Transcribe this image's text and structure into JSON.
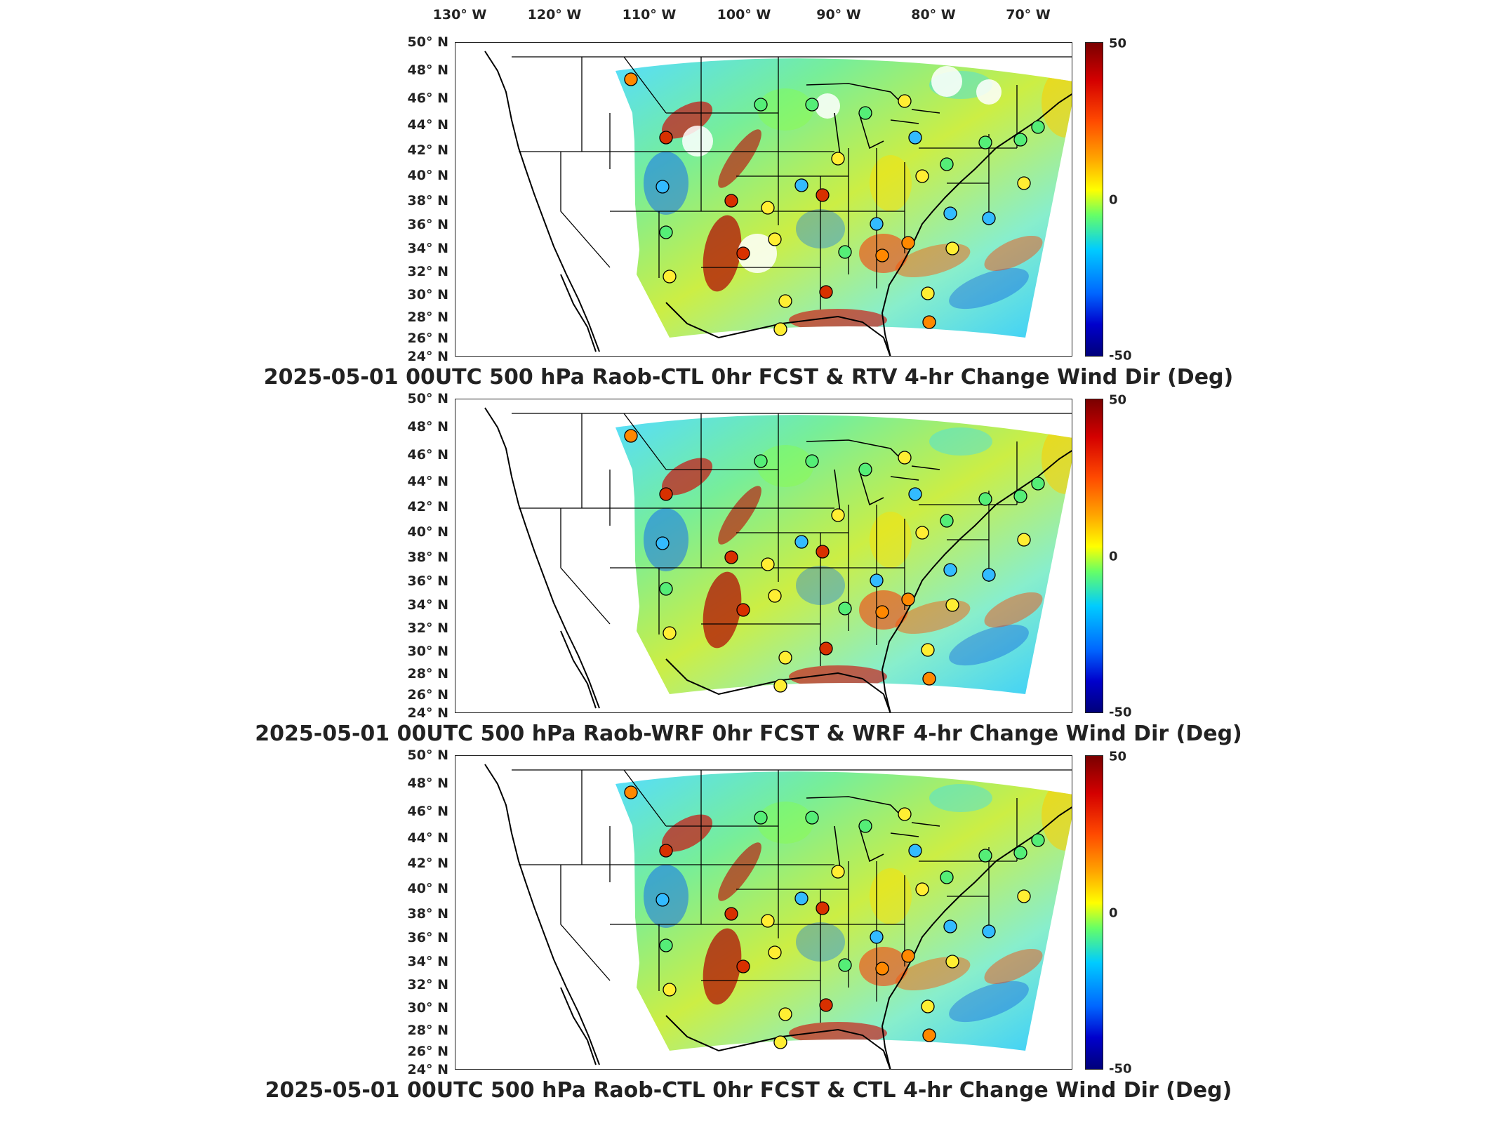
{
  "longitude_labels": [
    "130° W",
    "120° W",
    "110° W",
    "100° W",
    "90° W",
    "80° W",
    "70° W"
  ],
  "latitude_labels": [
    "50° N",
    "48° N",
    "46° N",
    "44° N",
    "42° N",
    "40° N",
    "38° N",
    "36° N",
    "34° N",
    "32° N",
    "30° N",
    "28° N",
    "26° N",
    "24° N"
  ],
  "colorbar": {
    "max_label": "50",
    "mid_label": "0",
    "min_label": "-50",
    "range": [
      -50,
      50
    ],
    "colormap": "jet"
  },
  "panels": [
    {
      "title": "2025-05-01 00UTC 500 hPa Raob-CTL 0hr FCST & RTV 4-hr Change Wind Dir (Deg)"
    },
    {
      "title": "2025-05-01 00UTC 500 hPa Raob-WRF 0hr FCST & WRF 4-hr Change Wind Dir (Deg)"
    },
    {
      "title": "2025-05-01 00UTC 500 hPa Raob-CTL 0hr FCST & CTL 4-hr Change Wind Dir (Deg)"
    }
  ],
  "colors": {
    "outline": "#000000",
    "high": "#d40000",
    "low": "#0000cc",
    "neutral": "#66ff66"
  }
}
